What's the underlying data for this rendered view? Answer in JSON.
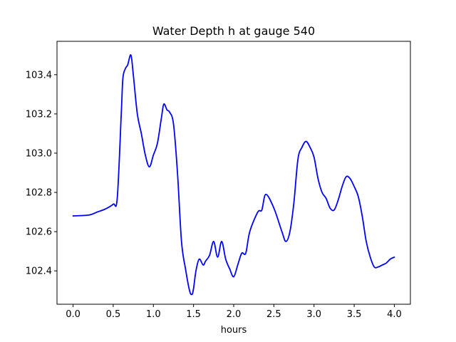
{
  "chart_data": {
    "type": "line",
    "title": "Water Depth h at gauge 540",
    "xlabel": "hours",
    "ylabel": "",
    "xlim": [
      -0.2,
      4.2
    ],
    "ylim": [
      102.23,
      103.57
    ],
    "xticks": [
      0.0,
      0.5,
      1.0,
      1.5,
      2.0,
      2.5,
      3.0,
      3.5,
      4.0
    ],
    "xtick_labels": [
      "0.0",
      "0.5",
      "1.0",
      "1.5",
      "2.0",
      "2.5",
      "3.0",
      "3.5",
      "4.0"
    ],
    "yticks": [
      102.4,
      102.6,
      102.8,
      103.0,
      103.2,
      103.4
    ],
    "ytick_labels": [
      "102.4",
      "102.6",
      "102.8",
      "103.0",
      "103.2",
      "103.4"
    ],
    "grid": false,
    "series": [
      {
        "color": "#0000ff",
        "x": [
          0.0,
          0.2,
          0.3,
          0.4,
          0.5,
          0.55,
          0.6,
          0.62,
          0.65,
          0.68,
          0.72,
          0.75,
          0.8,
          0.85,
          0.9,
          0.95,
          1.0,
          1.05,
          1.1,
          1.13,
          1.17,
          1.2,
          1.25,
          1.3,
          1.35,
          1.4,
          1.45,
          1.48,
          1.5,
          1.53,
          1.57,
          1.62,
          1.65,
          1.7,
          1.75,
          1.8,
          1.85,
          1.9,
          1.95,
          2.0,
          2.05,
          2.1,
          2.15,
          2.2,
          2.3,
          2.35,
          2.4,
          2.5,
          2.6,
          2.65,
          2.7,
          2.75,
          2.8,
          2.85,
          2.9,
          2.95,
          3.0,
          3.05,
          3.1,
          3.15,
          3.2,
          3.25,
          3.3,
          3.35,
          3.4,
          3.45,
          3.5,
          3.55,
          3.6,
          3.65,
          3.7,
          3.75,
          3.8,
          3.85,
          3.9,
          3.95,
          4.0
        ],
        "y": [
          102.68,
          102.685,
          102.7,
          102.715,
          102.74,
          102.77,
          103.2,
          103.38,
          103.43,
          103.45,
          103.5,
          103.4,
          103.2,
          103.1,
          102.99,
          102.93,
          102.99,
          103.05,
          103.18,
          103.25,
          103.22,
          103.21,
          103.15,
          102.9,
          102.55,
          102.41,
          102.3,
          102.28,
          102.31,
          102.4,
          102.46,
          102.43,
          102.45,
          102.48,
          102.55,
          102.47,
          102.55,
          102.46,
          102.41,
          102.37,
          102.43,
          102.49,
          102.49,
          102.6,
          102.7,
          102.71,
          102.79,
          102.72,
          102.6,
          102.55,
          102.6,
          102.75,
          102.97,
          103.03,
          103.06,
          103.03,
          102.98,
          102.87,
          102.8,
          102.77,
          102.72,
          102.71,
          102.76,
          102.83,
          102.88,
          102.87,
          102.83,
          102.78,
          102.68,
          102.55,
          102.47,
          102.42,
          102.42,
          102.43,
          102.44,
          102.46,
          102.47
        ]
      }
    ]
  }
}
